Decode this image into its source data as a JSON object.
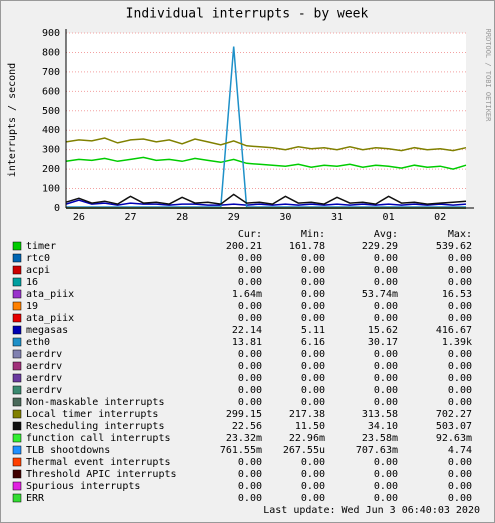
{
  "chart_data": {
    "type": "line",
    "title": "Individual interrupts - by week",
    "y_label": "interrupts / second",
    "watermark": "RRDTOOL / TOBI OETIKER",
    "last_update": "Last update:  Wed Jun  3 06:40:03 2020",
    "stat_headers": [
      "Cur:",
      "Min:",
      "Avg:",
      "Max:"
    ],
    "ylim": [
      0,
      900
    ],
    "yticks": [
      0,
      100,
      200,
      300,
      400,
      500,
      600,
      700,
      800,
      900
    ],
    "grid": true,
    "categories": [
      null,
      "26",
      null,
      null,
      null,
      "27",
      null,
      null,
      null,
      "28",
      null,
      null,
      null,
      "29",
      null,
      null,
      null,
      "30",
      null,
      null,
      null,
      "31",
      null,
      null,
      null,
      "01",
      null,
      null,
      null,
      "02",
      null,
      null
    ],
    "series": [
      {
        "name": "timer",
        "color": "#00cc00",
        "cur": "200.21",
        "min": "161.78",
        "avg": "229.29",
        "max": "539.62",
        "values": [
          240,
          250,
          245,
          255,
          240,
          250,
          260,
          245,
          250,
          240,
          255,
          245,
          235,
          250,
          230,
          225,
          220,
          215,
          225,
          210,
          220,
          215,
          225,
          210,
          220,
          215,
          205,
          220,
          210,
          215,
          200,
          220
        ]
      },
      {
        "name": "rtc0",
        "color": "#0066b3",
        "cur": "0.00",
        "min": "0.00",
        "avg": "0.00",
        "max": "0.00",
        "values": [
          0,
          0,
          0,
          0,
          0,
          0,
          0,
          0,
          0,
          0,
          0,
          0,
          0,
          0,
          0,
          0,
          0,
          0,
          0,
          0,
          0,
          0,
          0,
          0,
          0,
          0,
          0,
          0,
          0,
          0,
          0,
          0
        ]
      },
      {
        "name": "acpi",
        "color": "#cc0000",
        "cur": "0.00",
        "min": "0.00",
        "avg": "0.00",
        "max": "0.00",
        "values": [
          0,
          0,
          0,
          0,
          0,
          0,
          0,
          0,
          0,
          0,
          0,
          0,
          0,
          0,
          0,
          0,
          0,
          0,
          0,
          0,
          0,
          0,
          0,
          0,
          0,
          0,
          0,
          0,
          0,
          0,
          0,
          0
        ]
      },
      {
        "name": "16",
        "color": "#00a0a0",
        "cur": "0.00",
        "min": "0.00",
        "avg": "0.00",
        "max": "0.00",
        "values": [
          0,
          0,
          0,
          0,
          0,
          0,
          0,
          0,
          0,
          0,
          0,
          0,
          0,
          0,
          0,
          0,
          0,
          0,
          0,
          0,
          0,
          0,
          0,
          0,
          0,
          0,
          0,
          0,
          0,
          0,
          0,
          0
        ]
      },
      {
        "name": "ata_piix",
        "color": "#9933cc",
        "cur": "1.64m",
        "min": "0.00",
        "avg": "53.74m",
        "max": "16.53",
        "values": [
          0,
          0,
          0,
          0,
          0,
          0,
          0,
          0,
          0,
          0,
          0,
          0,
          0,
          0,
          0,
          0,
          0,
          0,
          0,
          0,
          0,
          0,
          0,
          0,
          0,
          0,
          0,
          0,
          0,
          0,
          0,
          0
        ]
      },
      {
        "name": "19",
        "color": "#ff8000",
        "cur": "0.00",
        "min": "0.00",
        "avg": "0.00",
        "max": "0.00",
        "values": [
          0,
          0,
          0,
          0,
          0,
          0,
          0,
          0,
          0,
          0,
          0,
          0,
          0,
          0,
          0,
          0,
          0,
          0,
          0,
          0,
          0,
          0,
          0,
          0,
          0,
          0,
          0,
          0,
          0,
          0,
          0,
          0
        ]
      },
      {
        "name": "ata_piix",
        "color": "#e60000",
        "cur": "0.00",
        "min": "0.00",
        "avg": "0.00",
        "max": "0.00",
        "values": [
          0,
          0,
          0,
          0,
          0,
          0,
          0,
          0,
          0,
          0,
          0,
          0,
          0,
          0,
          0,
          0,
          0,
          0,
          0,
          0,
          0,
          0,
          0,
          0,
          0,
          0,
          0,
          0,
          0,
          0,
          0,
          0
        ]
      },
      {
        "name": "megasas",
        "color": "#0000b3",
        "cur": "22.14",
        "min": "5.11",
        "avg": "15.62",
        "max": "416.67",
        "values": [
          20,
          40,
          20,
          25,
          15,
          25,
          20,
          20,
          15,
          20,
          20,
          15,
          15,
          20,
          15,
          20,
          15,
          20,
          15,
          20,
          15,
          20,
          15,
          20,
          15,
          20,
          15,
          20,
          15,
          20,
          15,
          20
        ]
      },
      {
        "name": "eth0",
        "color": "#1e90c8",
        "cur": "13.81",
        "min": "6.16",
        "avg": "30.17",
        "max": "1.39k",
        "values": [
          5,
          5,
          5,
          5,
          5,
          5,
          5,
          5,
          5,
          5,
          5,
          5,
          5,
          830,
          5,
          5,
          5,
          5,
          5,
          5,
          5,
          5,
          5,
          5,
          5,
          5,
          5,
          5,
          5,
          5,
          5,
          5
        ]
      },
      {
        "name": "aerdrv",
        "color": "#8080b0",
        "cur": "0.00",
        "min": "0.00",
        "avg": "0.00",
        "max": "0.00",
        "values": [
          0,
          0,
          0,
          0,
          0,
          0,
          0,
          0,
          0,
          0,
          0,
          0,
          0,
          0,
          0,
          0,
          0,
          0,
          0,
          0,
          0,
          0,
          0,
          0,
          0,
          0,
          0,
          0,
          0,
          0,
          0,
          0
        ]
      },
      {
        "name": "aerdrv",
        "color": "#a0307a",
        "cur": "0.00",
        "min": "0.00",
        "avg": "0.00",
        "max": "0.00",
        "values": [
          0,
          0,
          0,
          0,
          0,
          0,
          0,
          0,
          0,
          0,
          0,
          0,
          0,
          0,
          0,
          0,
          0,
          0,
          0,
          0,
          0,
          0,
          0,
          0,
          0,
          0,
          0,
          0,
          0,
          0,
          0,
          0
        ]
      },
      {
        "name": "aerdrv",
        "color": "#6a3aa0",
        "cur": "0.00",
        "min": "0.00",
        "avg": "0.00",
        "max": "0.00",
        "values": [
          0,
          0,
          0,
          0,
          0,
          0,
          0,
          0,
          0,
          0,
          0,
          0,
          0,
          0,
          0,
          0,
          0,
          0,
          0,
          0,
          0,
          0,
          0,
          0,
          0,
          0,
          0,
          0,
          0,
          0,
          0,
          0
        ]
      },
      {
        "name": "aerdrv",
        "color": "#3a8a70",
        "cur": "0.00",
        "min": "0.00",
        "avg": "0.00",
        "max": "0.00",
        "values": [
          0,
          0,
          0,
          0,
          0,
          0,
          0,
          0,
          0,
          0,
          0,
          0,
          0,
          0,
          0,
          0,
          0,
          0,
          0,
          0,
          0,
          0,
          0,
          0,
          0,
          0,
          0,
          0,
          0,
          0,
          0,
          0
        ]
      },
      {
        "name": "Non-maskable interrupts",
        "color": "#4a6a5a",
        "cur": "0.00",
        "min": "0.00",
        "avg": "0.00",
        "max": "0.00",
        "values": [
          0,
          0,
          0,
          0,
          0,
          0,
          0,
          0,
          0,
          0,
          0,
          0,
          0,
          0,
          0,
          0,
          0,
          0,
          0,
          0,
          0,
          0,
          0,
          0,
          0,
          0,
          0,
          0,
          0,
          0,
          0,
          0
        ]
      },
      {
        "name": "Local timer interrupts",
        "color": "#808000",
        "cur": "299.15",
        "min": "217.38",
        "avg": "313.58",
        "max": "702.27",
        "values": [
          340,
          350,
          345,
          360,
          335,
          350,
          355,
          340,
          350,
          330,
          355,
          340,
          325,
          345,
          320,
          315,
          310,
          300,
          315,
          305,
          310,
          300,
          315,
          300,
          310,
          305,
          295,
          310,
          300,
          305,
          295,
          310
        ]
      },
      {
        "name": "Rescheduling interrupts",
        "color": "#101010",
        "cur": "22.56",
        "min": "11.50",
        "avg": "34.10",
        "max": "503.07",
        "values": [
          30,
          50,
          25,
          35,
          20,
          60,
          25,
          30,
          20,
          55,
          25,
          30,
          20,
          70,
          25,
          30,
          20,
          60,
          25,
          30,
          20,
          55,
          25,
          30,
          20,
          60,
          25,
          30,
          20,
          25,
          30,
          35
        ]
      },
      {
        "name": "function call interrupts",
        "color": "#33ee33",
        "cur": "23.32m",
        "min": "22.96m",
        "avg": "23.58m",
        "max": "92.63m",
        "values": [
          0,
          0,
          0,
          0,
          0,
          0,
          0,
          0,
          0,
          0,
          0,
          0,
          0,
          0,
          0,
          0,
          0,
          0,
          0,
          0,
          0,
          0,
          0,
          0,
          0,
          0,
          0,
          0,
          0,
          0,
          0,
          0
        ]
      },
      {
        "name": "TLB shootdowns",
        "color": "#1e90ff",
        "cur": "761.55m",
        "min": "267.55u",
        "avg": "707.63m",
        "max": "4.74",
        "values": [
          0,
          0,
          0,
          0,
          0,
          0,
          0,
          0,
          0,
          0,
          0,
          0,
          0,
          0,
          0,
          0,
          0,
          0,
          0,
          0,
          0,
          0,
          0,
          0,
          0,
          0,
          0,
          0,
          0,
          0,
          0,
          0
        ]
      },
      {
        "name": "Thermal event interrupts",
        "color": "#ff4000",
        "cur": "0.00",
        "min": "0.00",
        "avg": "0.00",
        "max": "0.00",
        "values": [
          0,
          0,
          0,
          0,
          0,
          0,
          0,
          0,
          0,
          0,
          0,
          0,
          0,
          0,
          0,
          0,
          0,
          0,
          0,
          0,
          0,
          0,
          0,
          0,
          0,
          0,
          0,
          0,
          0,
          0,
          0,
          0
        ]
      },
      {
        "name": "Threshold APIC interrupts",
        "color": "#400000",
        "cur": "0.00",
        "min": "0.00",
        "avg": "0.00",
        "max": "0.00",
        "values": [
          0,
          0,
          0,
          0,
          0,
          0,
          0,
          0,
          0,
          0,
          0,
          0,
          0,
          0,
          0,
          0,
          0,
          0,
          0,
          0,
          0,
          0,
          0,
          0,
          0,
          0,
          0,
          0,
          0,
          0,
          0,
          0
        ]
      },
      {
        "name": "Spurious interrupts",
        "color": "#e020e0",
        "cur": "0.00",
        "min": "0.00",
        "avg": "0.00",
        "max": "0.00",
        "values": [
          0,
          0,
          0,
          0,
          0,
          0,
          0,
          0,
          0,
          0,
          0,
          0,
          0,
          0,
          0,
          0,
          0,
          0,
          0,
          0,
          0,
          0,
          0,
          0,
          0,
          0,
          0,
          0,
          0,
          0,
          0,
          0
        ]
      },
      {
        "name": "ERR",
        "color": "#33dd33",
        "cur": "0.00",
        "min": "0.00",
        "avg": "0.00",
        "max": "0.00",
        "values": [
          0,
          0,
          0,
          0,
          0,
          0,
          0,
          0,
          0,
          0,
          0,
          0,
          0,
          0,
          0,
          0,
          0,
          0,
          0,
          0,
          0,
          0,
          0,
          0,
          0,
          0,
          0,
          0,
          0,
          0,
          0,
          0
        ]
      }
    ]
  }
}
